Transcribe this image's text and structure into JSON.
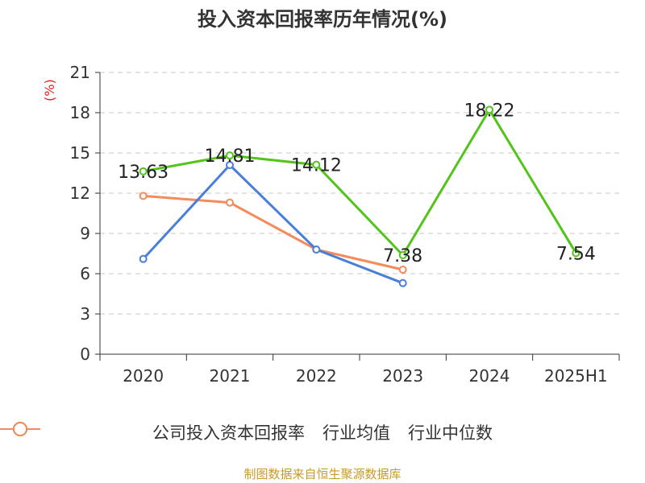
{
  "chart_data": {
    "type": "line",
    "title": "投入资本回报率历年情况(%)",
    "y_unit_label": "(%)",
    "categories": [
      "2020",
      "2021",
      "2022",
      "2023",
      "2024",
      "2025H1"
    ],
    "ylim": [
      0,
      21
    ],
    "yticks": [
      0,
      3,
      6,
      9,
      12,
      15,
      18,
      21
    ],
    "grid": true,
    "legend_position": "bottom",
    "series": [
      {
        "name": "公司投入资本回报率",
        "color": "#52c41a",
        "values": [
          13.63,
          14.81,
          14.12,
          7.38,
          18.22,
          7.54
        ],
        "labels": [
          "13.63",
          "14.81",
          "14.12",
          "7.38",
          "18.22",
          "7.54"
        ]
      },
      {
        "name": "行业均值",
        "color": "#4a7fd9",
        "values": [
          7.1,
          14.1,
          7.8,
          5.3,
          null,
          null
        ]
      },
      {
        "name": "行业中位数",
        "color": "#f58b5a",
        "values": [
          11.8,
          11.3,
          7.8,
          6.3,
          null,
          null
        ]
      }
    ]
  },
  "source": "制图数据来自恒生聚源数据库"
}
